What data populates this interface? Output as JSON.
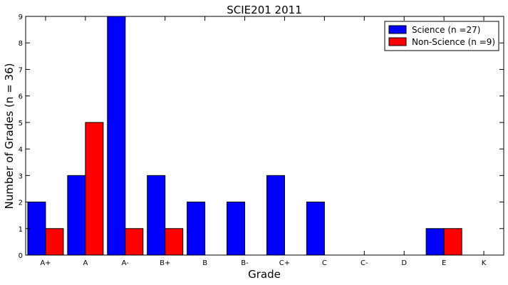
{
  "chart_data": {
    "type": "bar",
    "title": "SCIE201 2011",
    "xlabel": "Grade",
    "ylabel": "Number of Grades (n = 36)",
    "categories": [
      "A+",
      "A",
      "A-",
      "B+",
      "B",
      "B-",
      "C+",
      "C",
      "C-",
      "D",
      "E",
      "K"
    ],
    "series": [
      {
        "name": "Science (n =27)",
        "color": "#0000ff",
        "values": [
          2,
          3,
          9,
          3,
          2,
          2,
          3,
          2,
          0,
          0,
          1,
          0
        ]
      },
      {
        "name": "Non-Science (n =9)",
        "color": "#ff0000",
        "values": [
          1,
          5,
          1,
          1,
          0,
          0,
          0,
          0,
          0,
          0,
          1,
          0
        ]
      }
    ],
    "ylim": [
      0,
      9
    ],
    "yticks": [
      0,
      1,
      2,
      3,
      4,
      5,
      6,
      7,
      8,
      9
    ],
    "grid": false,
    "legend_position": "top-right"
  }
}
